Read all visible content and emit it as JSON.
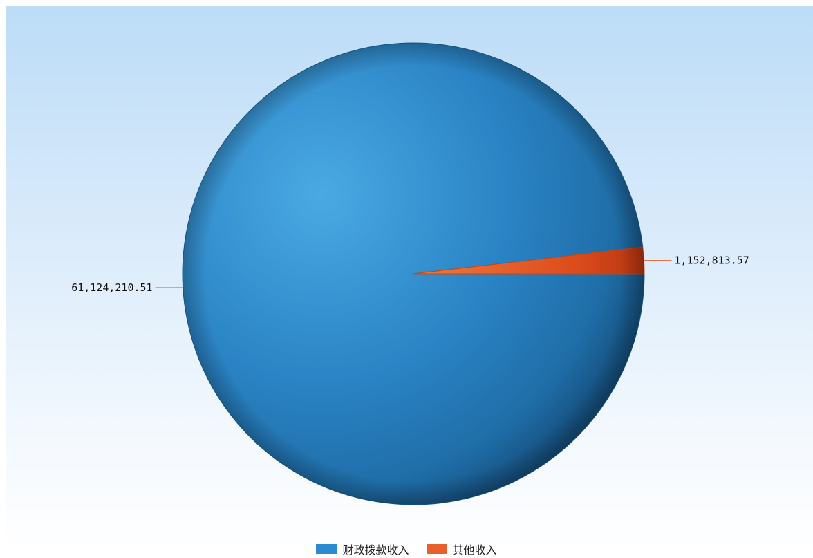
{
  "chart_data": {
    "type": "pie",
    "title": "",
    "categories": [
      "财政拨款收入",
      "其他收入"
    ],
    "values": [
      61124210.51,
      1152813.57
    ],
    "data_labels": [
      "61,124,210.51",
      "1,152,813.57"
    ],
    "colors": [
      "#2b8ad0",
      "#e8602c"
    ],
    "legend": "bottom-center",
    "start_angle_deg": 0
  }
}
